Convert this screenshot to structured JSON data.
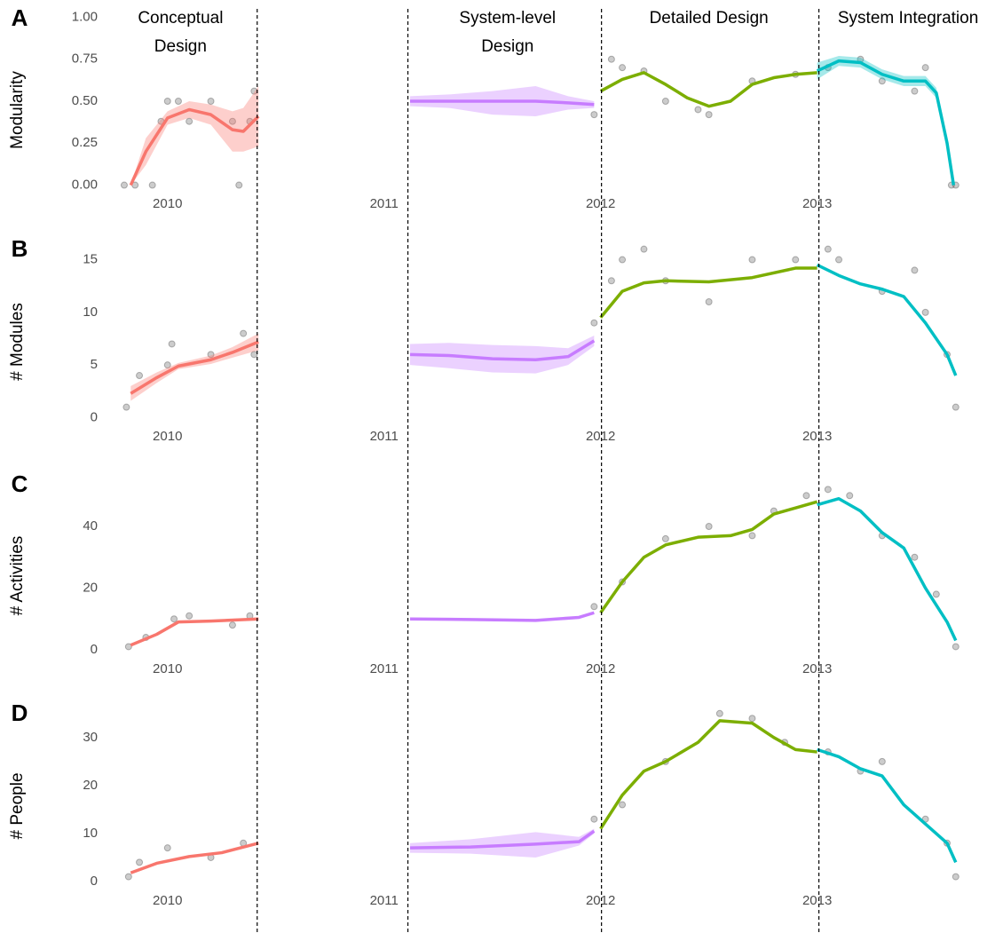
{
  "chart_data": [
    {
      "type": "line",
      "panel_label": "A",
      "ylabel": "Modularity",
      "xlim": [
        2009.71,
        2013.85
      ],
      "xticks": [
        2010,
        2011,
        2012,
        2013
      ],
      "ylim": [
        -0.05,
        1.05
      ],
      "yticks": [
        {
          "value": 0,
          "label": "0.00"
        },
        {
          "value": 0.25,
          "label": "0.25"
        },
        {
          "value": 0.5,
          "label": "0.50"
        },
        {
          "value": 0.75,
          "label": "0.75"
        },
        {
          "value": 1,
          "label": "1.00"
        }
      ],
      "grid": true,
      "series": [
        {
          "color": "#f8766d",
          "x": [
            2009.83,
            2009.9,
            2010.0,
            2010.1,
            2010.2,
            2010.3,
            2010.35,
            2010.42
          ],
          "values": [
            0,
            0.2,
            0.4,
            0.45,
            0.42,
            0.33,
            0.32,
            0.41
          ],
          "lower": [
            0,
            0.12,
            0.36,
            0.4,
            0.36,
            0.2,
            0.2,
            0.23
          ],
          "upper": [
            0,
            0.28,
            0.44,
            0.5,
            0.48,
            0.44,
            0.46,
            0.59
          ]
        },
        {
          "color": "#c77cff",
          "x": [
            2011.12,
            2011.3,
            2011.5,
            2011.7,
            2011.85,
            2011.97
          ],
          "values": [
            0.5,
            0.5,
            0.5,
            0.5,
            0.49,
            0.48
          ],
          "lower": [
            0.47,
            0.46,
            0.42,
            0.41,
            0.45,
            0.46
          ],
          "upper": [
            0.53,
            0.54,
            0.56,
            0.59,
            0.53,
            0.5
          ]
        },
        {
          "color": "#7cae00",
          "x": [
            2012.0,
            2012.1,
            2012.2,
            2012.3,
            2012.4,
            2012.5,
            2012.6,
            2012.7,
            2012.8,
            2012.9,
            2013.0
          ],
          "values": [
            0.56,
            0.63,
            0.67,
            0.6,
            0.52,
            0.47,
            0.5,
            0.6,
            0.64,
            0.66,
            0.67
          ]
        },
        {
          "color": "#00bfc4",
          "x": [
            2013.0,
            2013.1,
            2013.2,
            2013.3,
            2013.4,
            2013.5,
            2013.55,
            2013.6,
            2013.63
          ],
          "values": [
            0.68,
            0.74,
            0.73,
            0.66,
            0.62,
            0.62,
            0.55,
            0.25,
            0
          ],
          "lower": [
            0.63,
            0.71,
            0.7,
            0.63,
            0.59,
            0.59,
            0.52,
            0.22,
            0
          ],
          "upper": [
            0.73,
            0.77,
            0.76,
            0.69,
            0.65,
            0.65,
            0.58,
            0.28,
            0
          ]
        }
      ],
      "points": {
        "x": [
          2009.8,
          2009.85,
          2009.93,
          2009.97,
          2010.0,
          2010.05,
          2010.1,
          2010.2,
          2010.3,
          2010.33,
          2010.38,
          2010.4,
          2011.97,
          2012.05,
          2012.1,
          2012.2,
          2012.3,
          2012.45,
          2012.5,
          2012.7,
          2012.9,
          2013.05,
          2013.2,
          2013.3,
          2013.45,
          2013.5,
          2013.62,
          2013.64
        ],
        "values": [
          0,
          0,
          0,
          0.38,
          0.5,
          0.5,
          0.38,
          0.5,
          0.38,
          0,
          0.38,
          0.56,
          0.42,
          0.75,
          0.7,
          0.68,
          0.5,
          0.45,
          0.42,
          0.62,
          0.66,
          0.7,
          0.75,
          0.62,
          0.56,
          0.7,
          0,
          0
        ]
      }
    },
    {
      "type": "line",
      "panel_label": "B",
      "ylabel": "# Modules",
      "xlim": [
        2009.71,
        2013.85
      ],
      "xticks": [
        2010,
        2011,
        2012,
        2013
      ],
      "ylim": [
        -0.8,
        16.9
      ],
      "yticks": [
        0,
        5,
        10,
        15
      ],
      "grid": true,
      "series": [
        {
          "color": "#f8766d",
          "x": [
            2009.83,
            2009.95,
            2010.05,
            2010.2,
            2010.3,
            2010.42
          ],
          "values": [
            2.3,
            3.8,
            4.9,
            5.5,
            6.2,
            7.2
          ],
          "lower": [
            1.6,
            3.3,
            4.6,
            5.1,
            5.7,
            6.4
          ],
          "upper": [
            3,
            4.3,
            5.2,
            5.9,
            6.7,
            8
          ]
        },
        {
          "color": "#c77cff",
          "x": [
            2011.12,
            2011.3,
            2011.5,
            2011.7,
            2011.85,
            2011.97
          ],
          "values": [
            6,
            5.9,
            5.6,
            5.5,
            5.8,
            7.3
          ],
          "lower": [
            5,
            4.7,
            4.3,
            4.2,
            5,
            6.8
          ],
          "upper": [
            7,
            7.1,
            6.9,
            6.8,
            6.6,
            7.8
          ]
        },
        {
          "color": "#7cae00",
          "x": [
            2012.0,
            2012.1,
            2012.2,
            2012.3,
            2012.5,
            2012.7,
            2012.9,
            2013.0
          ],
          "values": [
            9.5,
            12,
            12.8,
            13,
            12.9,
            13.3,
            14.2,
            14.2
          ]
        },
        {
          "color": "#00bfc4",
          "x": [
            2013.0,
            2013.1,
            2013.2,
            2013.3,
            2013.4,
            2013.5,
            2013.6,
            2013.64
          ],
          "values": [
            14.5,
            13.5,
            12.7,
            12.2,
            11.5,
            9,
            6,
            4
          ]
        }
      ],
      "points": {
        "x": [
          2009.81,
          2009.87,
          2010.0,
          2010.02,
          2010.2,
          2010.35,
          2010.4,
          2011.97,
          2012.05,
          2012.1,
          2012.2,
          2012.3,
          2012.5,
          2012.7,
          2012.9,
          2013.05,
          2013.1,
          2013.3,
          2013.45,
          2013.5,
          2013.6,
          2013.64
        ],
        "values": [
          1,
          4,
          5,
          7,
          6,
          8,
          6,
          9,
          13,
          15,
          16,
          13,
          11,
          15,
          15,
          16,
          15,
          12,
          14,
          10,
          6,
          1
        ]
      }
    },
    {
      "type": "line",
      "panel_label": "C",
      "ylabel": "# Activities",
      "xlim": [
        2009.71,
        2013.85
      ],
      "xticks": [
        2010,
        2011,
        2012,
        2013
      ],
      "ylim": [
        -2.9,
        56.7
      ],
      "yticks": [
        0,
        20,
        40
      ],
      "grid": true,
      "series": [
        {
          "color": "#f8766d",
          "x": [
            2009.83,
            2009.95,
            2010.05,
            2010.2,
            2010.42
          ],
          "values": [
            1.5,
            5,
            9,
            9.3,
            10
          ]
        },
        {
          "color": "#c77cff",
          "x": [
            2011.12,
            2011.4,
            2011.7,
            2011.9,
            2011.97
          ],
          "values": [
            10,
            9.8,
            9.5,
            10.5,
            12
          ]
        },
        {
          "color": "#7cae00",
          "x": [
            2012.0,
            2012.1,
            2012.2,
            2012.3,
            2012.45,
            2012.6,
            2012.7,
            2012.8,
            2012.9,
            2013.0
          ],
          "values": [
            12,
            22,
            30,
            34,
            36.5,
            37,
            39,
            44,
            46,
            48
          ]
        },
        {
          "color": "#00bfc4",
          "x": [
            2013.0,
            2013.1,
            2013.2,
            2013.3,
            2013.4,
            2013.5,
            2013.6,
            2013.64
          ],
          "values": [
            47,
            49,
            45,
            38,
            33,
            20,
            9,
            3
          ]
        }
      ],
      "points": {
        "x": [
          2009.82,
          2009.9,
          2010.03,
          2010.1,
          2010.3,
          2010.38,
          2011.97,
          2012.1,
          2012.3,
          2012.5,
          2012.7,
          2012.8,
          2012.95,
          2013.05,
          2013.15,
          2013.3,
          2013.45,
          2013.55,
          2013.64
        ],
        "values": [
          1,
          4,
          10,
          11,
          8,
          11,
          14,
          22,
          36,
          40,
          37,
          45,
          50,
          52,
          50,
          37,
          30,
          18,
          1
        ]
      }
    },
    {
      "type": "line",
      "panel_label": "D",
      "ylabel": "# People",
      "xlim": [
        2009.71,
        2013.85
      ],
      "xticks": [
        2010,
        2011,
        2012,
        2013
      ],
      "ylim": [
        -1.85,
        37
      ],
      "yticks": [
        0,
        10,
        20,
        30
      ],
      "grid": true,
      "series": [
        {
          "color": "#f8766d",
          "x": [
            2009.83,
            2009.95,
            2010.1,
            2010.25,
            2010.42
          ],
          "values": [
            1.8,
            3.8,
            5.2,
            6,
            8
          ]
        },
        {
          "color": "#c77cff",
          "x": [
            2011.12,
            2011.4,
            2011.7,
            2011.9,
            2011.97
          ],
          "values": [
            7,
            7.2,
            7.8,
            8.3,
            10.5
          ],
          "lower": [
            6,
            5.8,
            5,
            7.5,
            10
          ],
          "upper": [
            8,
            8.8,
            10.3,
            9.3,
            11
          ]
        },
        {
          "color": "#7cae00",
          "x": [
            2012.0,
            2012.1,
            2012.2,
            2012.3,
            2012.45,
            2012.55,
            2012.7,
            2012.8,
            2012.9,
            2013.0
          ],
          "values": [
            11,
            18,
            23,
            25,
            29,
            33.5,
            33,
            30,
            27.5,
            27
          ]
        },
        {
          "color": "#00bfc4",
          "x": [
            2013.0,
            2013.1,
            2013.2,
            2013.3,
            2013.4,
            2013.5,
            2013.6,
            2013.64
          ],
          "values": [
            27.5,
            26,
            23.5,
            22,
            16,
            12,
            8,
            4
          ]
        }
      ],
      "points": {
        "x": [
          2009.82,
          2009.87,
          2010.0,
          2010.2,
          2010.35,
          2011.97,
          2012.1,
          2012.3,
          2012.55,
          2012.7,
          2012.85,
          2013.05,
          2013.2,
          2013.3,
          2013.5,
          2013.6,
          2013.64
        ],
        "values": [
          1,
          4,
          7,
          5,
          8,
          13,
          16,
          25,
          35,
          34,
          29,
          27,
          23,
          25,
          13,
          8,
          1
        ]
      }
    }
  ],
  "phases": [
    {
      "lines": [
        "Conceptual",
        "Design"
      ],
      "x": 2010.06
    },
    {
      "lines": [
        "System-level",
        "Design"
      ],
      "x": 2011.57
    },
    {
      "lines": [
        "Detailed Design"
      ],
      "x": 2012.5
    },
    {
      "lines": [
        "System Integration"
      ],
      "x": 2013.42
    }
  ],
  "phase_boundaries": [
    2010.414,
    2011.11,
    2012.004,
    2013.008
  ]
}
